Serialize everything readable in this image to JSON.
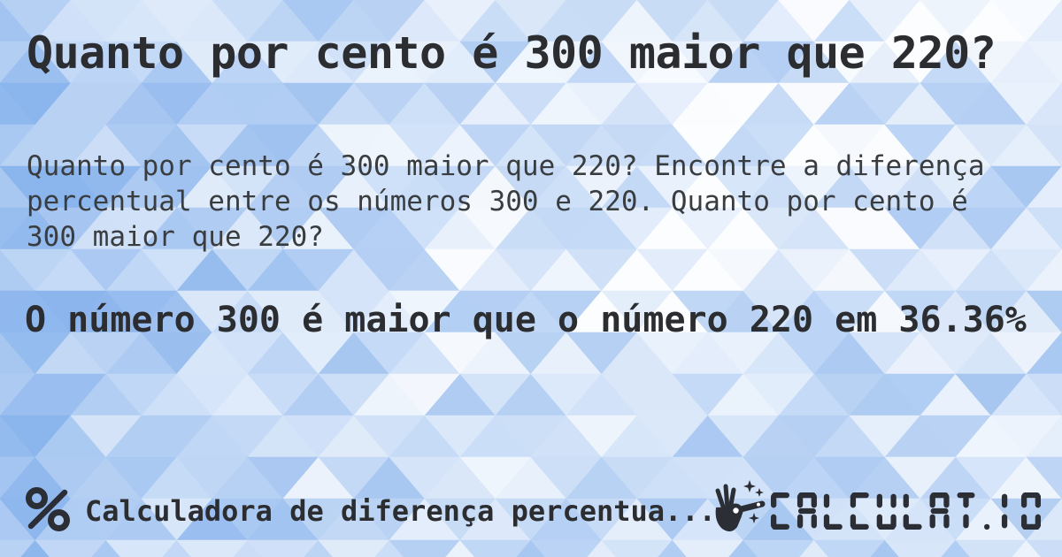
{
  "card": {
    "title": "Quanto por cento é 300 maior que 220?",
    "description": "Quanto por cento é 300 maior que 220? Encontre a diferença percentual entre os números 300 e 220. Quanto por cento é 300 maior que 220?",
    "result": "O número 300 é maior que o número 220 em 36.36%"
  },
  "footer": {
    "calculator_label": "Calculadora de diferença percentua...",
    "brand": "CALCULAT.IO"
  },
  "icons": {
    "percent": "percent-icon",
    "magic_wand": "magic-wand-icon"
  },
  "colors": {
    "background_blue": "#85b1ec",
    "background_white": "#ffffff",
    "title_text": "#2c2d30",
    "body_text": "#3a3d40",
    "brand_dark": "#2b2e35"
  }
}
